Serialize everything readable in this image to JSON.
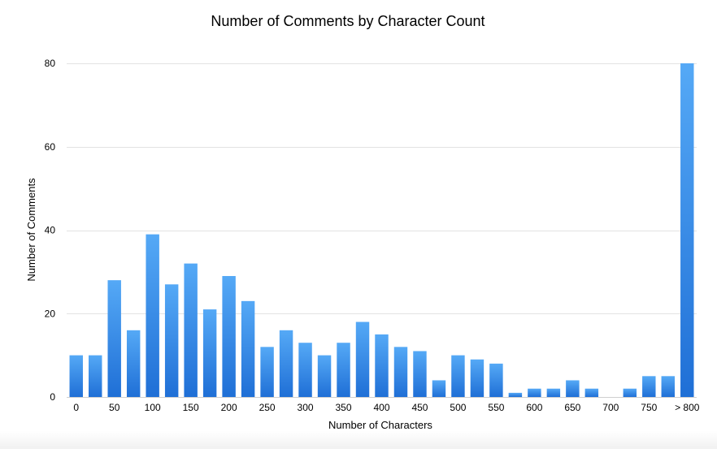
{
  "chart_data": {
    "type": "bar",
    "title": "Number of Comments by Character Count",
    "xlabel": "Number of Characters",
    "ylabel": "Number of Comments",
    "ylim": [
      0,
      80
    ],
    "yticks": [
      0,
      20,
      40,
      60,
      80
    ],
    "grid": true,
    "bar_color": "#2f8ae6",
    "categories": [
      "0",
      "25",
      "50",
      "75",
      "100",
      "125",
      "150",
      "175",
      "200",
      "225",
      "250",
      "275",
      "300",
      "325",
      "350",
      "375",
      "400",
      "425",
      "450",
      "475",
      "500",
      "525",
      "550",
      "575",
      "600",
      "625",
      "650",
      "675",
      "700",
      "725",
      "750",
      "775",
      "> 800"
    ],
    "xtick_labels": [
      "0",
      "",
      "50",
      "",
      "100",
      "",
      "150",
      "",
      "200",
      "",
      "250",
      "",
      "300",
      "",
      "350",
      "",
      "400",
      "",
      "450",
      "",
      "500",
      "",
      "550",
      "",
      "600",
      "",
      "650",
      "",
      "700",
      "",
      "750",
      "",
      "> 800"
    ],
    "values": [
      10,
      10,
      28,
      16,
      39,
      27,
      32,
      21,
      29,
      23,
      12,
      16,
      13,
      10,
      13,
      18,
      15,
      12,
      11,
      4,
      10,
      9,
      8,
      1,
      2,
      2,
      4,
      2,
      0,
      2,
      5,
      5,
      80
    ]
  }
}
